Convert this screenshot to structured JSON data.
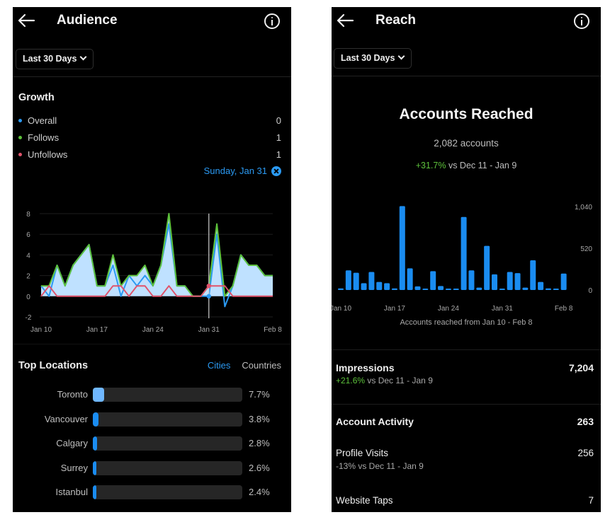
{
  "left": {
    "header": {
      "title": "Audience",
      "back_icon": "arrow-left",
      "info_icon": "info-circle"
    },
    "date_range": {
      "label": "Last 30 Days"
    },
    "growth": {
      "title": "Growth",
      "legend": [
        {
          "label": "Overall",
          "value": "0",
          "color": "#2b9af3"
        },
        {
          "label": "Follows",
          "value": "1",
          "color": "#5dc13b"
        },
        {
          "label": "Unfollows",
          "value": "1",
          "color": "#e0536b"
        }
      ],
      "selected_date": "Sunday, Jan 31"
    },
    "top_locations": {
      "title": "Top Locations",
      "tabs": [
        {
          "label": "Cities",
          "active": true
        },
        {
          "label": "Countries",
          "active": false
        }
      ],
      "items": [
        {
          "city": "Toronto",
          "pct": "7.7%",
          "fill": 7.7,
          "color": "#6fb7ff"
        },
        {
          "city": "Vancouver",
          "pct": "3.8%",
          "fill": 3.8,
          "color": "#1a8cf0"
        },
        {
          "city": "Calgary",
          "pct": "2.8%",
          "fill": 2.8,
          "color": "#1a8cf0"
        },
        {
          "city": "Surrey",
          "pct": "2.6%",
          "fill": 2.6,
          "color": "#1a8cf0"
        },
        {
          "city": "Istanbul",
          "pct": "2.4%",
          "fill": 2.4,
          "color": "#1a8cf0"
        }
      ]
    }
  },
  "right": {
    "header": {
      "title": "Reach",
      "back_icon": "arrow-left",
      "info_icon": "info-circle"
    },
    "date_range": {
      "label": "Last 30 Days"
    },
    "accounts_reached": {
      "title": "Accounts Reached",
      "count": "2,082 accounts",
      "change": "+31.7%",
      "comparison": " vs Dec 11 - Jan 9",
      "caption": "Accounts reached from Jan 10 - Feb 8"
    },
    "impressions": {
      "label": "Impressions",
      "value": "7,204",
      "change": "+21.6%",
      "comparison": " vs Dec 11 - Jan 9"
    },
    "account_activity": {
      "label": "Account Activity",
      "value": "263"
    },
    "profile_visits": {
      "label": "Profile Visits",
      "value": "256",
      "sub": "-13% vs Dec 11 - Jan 9"
    },
    "website_taps": {
      "label": "Website Taps",
      "value": "7"
    }
  },
  "chart_data": [
    {
      "type": "area",
      "title": "Growth",
      "categories": [
        "Jan 10",
        "Jan 11",
        "Jan 12",
        "Jan 13",
        "Jan 14",
        "Jan 15",
        "Jan 16",
        "Jan 17",
        "Jan 18",
        "Jan 19",
        "Jan 20",
        "Jan 21",
        "Jan 22",
        "Jan 23",
        "Jan 24",
        "Jan 25",
        "Jan 26",
        "Jan 27",
        "Jan 28",
        "Jan 29",
        "Jan 30",
        "Jan 31",
        "Feb 1",
        "Feb 2",
        "Feb 3",
        "Feb 4",
        "Feb 5",
        "Feb 6",
        "Feb 7",
        "Feb 8"
      ],
      "x_tick_labels": [
        "Jan 10",
        "Jan 17",
        "Jan 24",
        "Jan 31",
        "Feb 8"
      ],
      "y_tick_labels": [
        "8",
        "6",
        "4",
        "2",
        "0",
        "-2"
      ],
      "ylim": [
        -2,
        8
      ],
      "grid": true,
      "marker": "Jan 31",
      "series": [
        {
          "name": "Follows",
          "color": "#5dc13b",
          "values": [
            1,
            1,
            3,
            1,
            3,
            4,
            5,
            1,
            1,
            4,
            1,
            2,
            2,
            3,
            1,
            3,
            8,
            1,
            1,
            0,
            0,
            1,
            7,
            0,
            1,
            4,
            3,
            3,
            2,
            2
          ]
        },
        {
          "name": "Overall",
          "color": "#2b9af3",
          "values": [
            1,
            0,
            3,
            1,
            3,
            4,
            5,
            1,
            1,
            3,
            0,
            2,
            1,
            2,
            1,
            3,
            7,
            1,
            1,
            0,
            0,
            0,
            6,
            -1,
            1,
            4,
            3,
            3,
            2,
            2
          ]
        },
        {
          "name": "Unfollows",
          "color": "#e0536b",
          "values": [
            0,
            1,
            0,
            0,
            0,
            0,
            0,
            0,
            0,
            1,
            1,
            0,
            1,
            1,
            0,
            0,
            1,
            0,
            0,
            0,
            0,
            1,
            1,
            1,
            0,
            0,
            0,
            0,
            0,
            0
          ]
        }
      ]
    },
    {
      "type": "bar",
      "title": "Accounts Reached",
      "xlabel": "Accounts reached from Jan 10 - Feb 8",
      "categories": [
        "Jan 10",
        "Jan 11",
        "Jan 12",
        "Jan 13",
        "Jan 14",
        "Jan 15",
        "Jan 16",
        "Jan 17",
        "Jan 18",
        "Jan 19",
        "Jan 20",
        "Jan 21",
        "Jan 22",
        "Jan 23",
        "Jan 24",
        "Jan 25",
        "Jan 26",
        "Jan 27",
        "Jan 28",
        "Jan 29",
        "Jan 30",
        "Jan 31",
        "Feb 1",
        "Feb 2",
        "Feb 3",
        "Feb 4",
        "Feb 5",
        "Feb 6",
        "Feb 7",
        "Feb 8"
      ],
      "x_tick_labels": [
        "Jan 10",
        "Jan 17",
        "Jan 24",
        "Jan 31",
        "Feb 8"
      ],
      "y_tick_labels": [
        "1,040",
        "520",
        "0"
      ],
      "ylim": [
        0,
        1040
      ],
      "values": [
        20,
        245,
        215,
        85,
        225,
        100,
        85,
        20,
        1045,
        270,
        45,
        15,
        235,
        50,
        10,
        10,
        910,
        245,
        30,
        550,
        195,
        15,
        225,
        210,
        30,
        370,
        100,
        20,
        10,
        205
      ],
      "color": "#1a8cf0"
    }
  ]
}
